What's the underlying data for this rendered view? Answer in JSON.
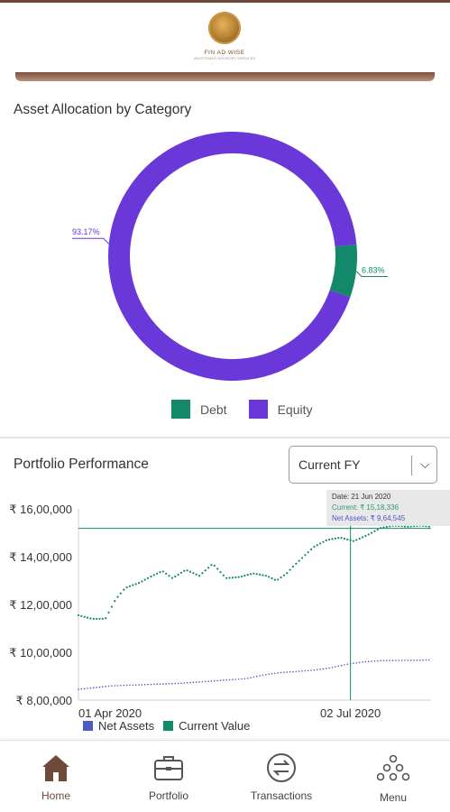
{
  "header": {
    "brand": "FIN AD WISE",
    "tagline": "INVESTMENT ADVISORY SERVICES"
  },
  "allocation": {
    "title": "Asset Allocation by Category",
    "legend": [
      {
        "label": "Debt",
        "color": "#13896a"
      },
      {
        "label": "Equity",
        "color": "#6a37d8"
      }
    ]
  },
  "performance": {
    "title": "Portfolio Performance",
    "period_selected": "Current FY",
    "tooltip": {
      "date": "Date: 21 Jun 2020",
      "current": "Current: ₹ 15,18,336",
      "net_assets": "Net Assets: ₹ 9,64,545"
    },
    "legend": [
      {
        "label": "Net Assets",
        "color": "#4a5bc4"
      },
      {
        "label": "Current Value",
        "color": "#13896a"
      }
    ]
  },
  "chart_data": [
    {
      "type": "pie",
      "title": "Asset Allocation by Category",
      "labels": [
        "Equity",
        "Debt"
      ],
      "values": [
        93.17,
        6.83
      ],
      "value_labels": [
        "93.17%",
        "6.83%"
      ],
      "colors": [
        "#6a37d8",
        "#13896a"
      ],
      "legend_position": "bottom"
    },
    {
      "type": "line",
      "title": "Portfolio Performance",
      "x_tick_labels": [
        "01 Apr 2020",
        "02 Jul 2020"
      ],
      "y_tick_labels": [
        "₹ 8,00,000",
        "₹ 10,00,000",
        "₹ 12,00,000",
        "₹ 14,00,000",
        "₹ 16,00,000"
      ],
      "ylim": [
        800000,
        1600000
      ],
      "x_days": 105,
      "crosshair_day": 81,
      "crosshair_value": 1518336,
      "series": [
        {
          "name": "Current Value",
          "color": "#13896a",
          "points": [
            [
              0,
              1155000
            ],
            [
              4,
              1140000
            ],
            [
              8,
              1140000
            ],
            [
              11,
              1220000
            ],
            [
              14,
              1270000
            ],
            [
              18,
              1290000
            ],
            [
              22,
              1320000
            ],
            [
              25,
              1340000
            ],
            [
              28,
              1310000
            ],
            [
              32,
              1345000
            ],
            [
              36,
              1320000
            ],
            [
              40,
              1370000
            ],
            [
              44,
              1310000
            ],
            [
              48,
              1315000
            ],
            [
              52,
              1330000
            ],
            [
              56,
              1320000
            ],
            [
              59,
              1300000
            ],
            [
              62,
              1330000
            ],
            [
              64,
              1360000
            ],
            [
              67,
              1400000
            ],
            [
              70,
              1440000
            ],
            [
              74,
              1470000
            ],
            [
              78,
              1480000
            ],
            [
              82,
              1465000
            ],
            [
              86,
              1490000
            ],
            [
              90,
              1520000
            ],
            [
              94,
              1530000
            ],
            [
              98,
              1525000
            ],
            [
              102,
              1530000
            ],
            [
              105,
              1525000
            ]
          ]
        },
        {
          "name": "Net Assets",
          "color": "#4a5bc4",
          "points": [
            [
              0,
              845000
            ],
            [
              10,
              860000
            ],
            [
              20,
              865000
            ],
            [
              30,
              870000
            ],
            [
              40,
              880000
            ],
            [
              50,
              890000
            ],
            [
              55,
              905000
            ],
            [
              60,
              915000
            ],
            [
              70,
              925000
            ],
            [
              75,
              935000
            ],
            [
              80,
              950000
            ],
            [
              85,
              960000
            ],
            [
              90,
              965000
            ],
            [
              95,
              966000
            ],
            [
              100,
              967000
            ],
            [
              105,
              968000
            ]
          ]
        }
      ]
    }
  ],
  "nav": [
    {
      "label": "Home",
      "icon": "home-icon"
    },
    {
      "label": "Portfolio",
      "icon": "briefcase-icon"
    },
    {
      "label": "Transactions",
      "icon": "transfer-icon"
    },
    {
      "label": "Menu",
      "icon": "dots-grid-icon"
    }
  ]
}
